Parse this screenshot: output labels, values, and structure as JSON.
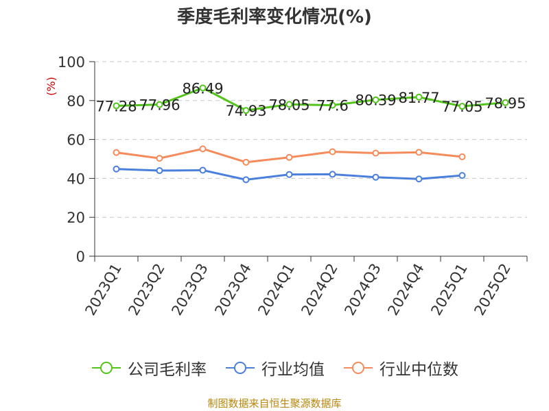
{
  "chart_data": {
    "type": "line",
    "title": "季度毛利率变化情况(%)",
    "ylabel": "(%)",
    "xlabel": "",
    "categories": [
      "2023Q1",
      "2023Q2",
      "2023Q3",
      "2023Q4",
      "2024Q1",
      "2024Q2",
      "2024Q3",
      "2024Q4",
      "2025Q1",
      "2025Q2"
    ],
    "ylim": [
      0,
      100
    ],
    "yticks": [
      "0",
      "20",
      "40",
      "60",
      "80",
      "100"
    ],
    "grid": true,
    "legend_position": "bottom",
    "series": [
      {
        "name": "公司毛利率",
        "color": "#52c41a",
        "values": [
          77.28,
          77.96,
          86.49,
          74.93,
          78.05,
          77.6,
          80.39,
          81.77,
          77.05,
          78.95
        ],
        "labels": [
          "77.28",
          "77.96",
          "86.49",
          "74.93",
          "78.05",
          "77.6",
          "80.39",
          "81.77",
          "77.05",
          "78.95"
        ]
      },
      {
        "name": "行业均值",
        "color": "#4a7fdc",
        "values": [
          44.8,
          44.0,
          44.2,
          39.3,
          42.0,
          42.1,
          40.6,
          39.7,
          41.5,
          null
        ]
      },
      {
        "name": "行业中位数",
        "color": "#f58a5b",
        "values": [
          53.3,
          50.3,
          55.2,
          48.3,
          50.8,
          53.7,
          53.0,
          53.4,
          51.1,
          null
        ]
      }
    ]
  },
  "source": "制图数据来自恒生聚源数据库"
}
